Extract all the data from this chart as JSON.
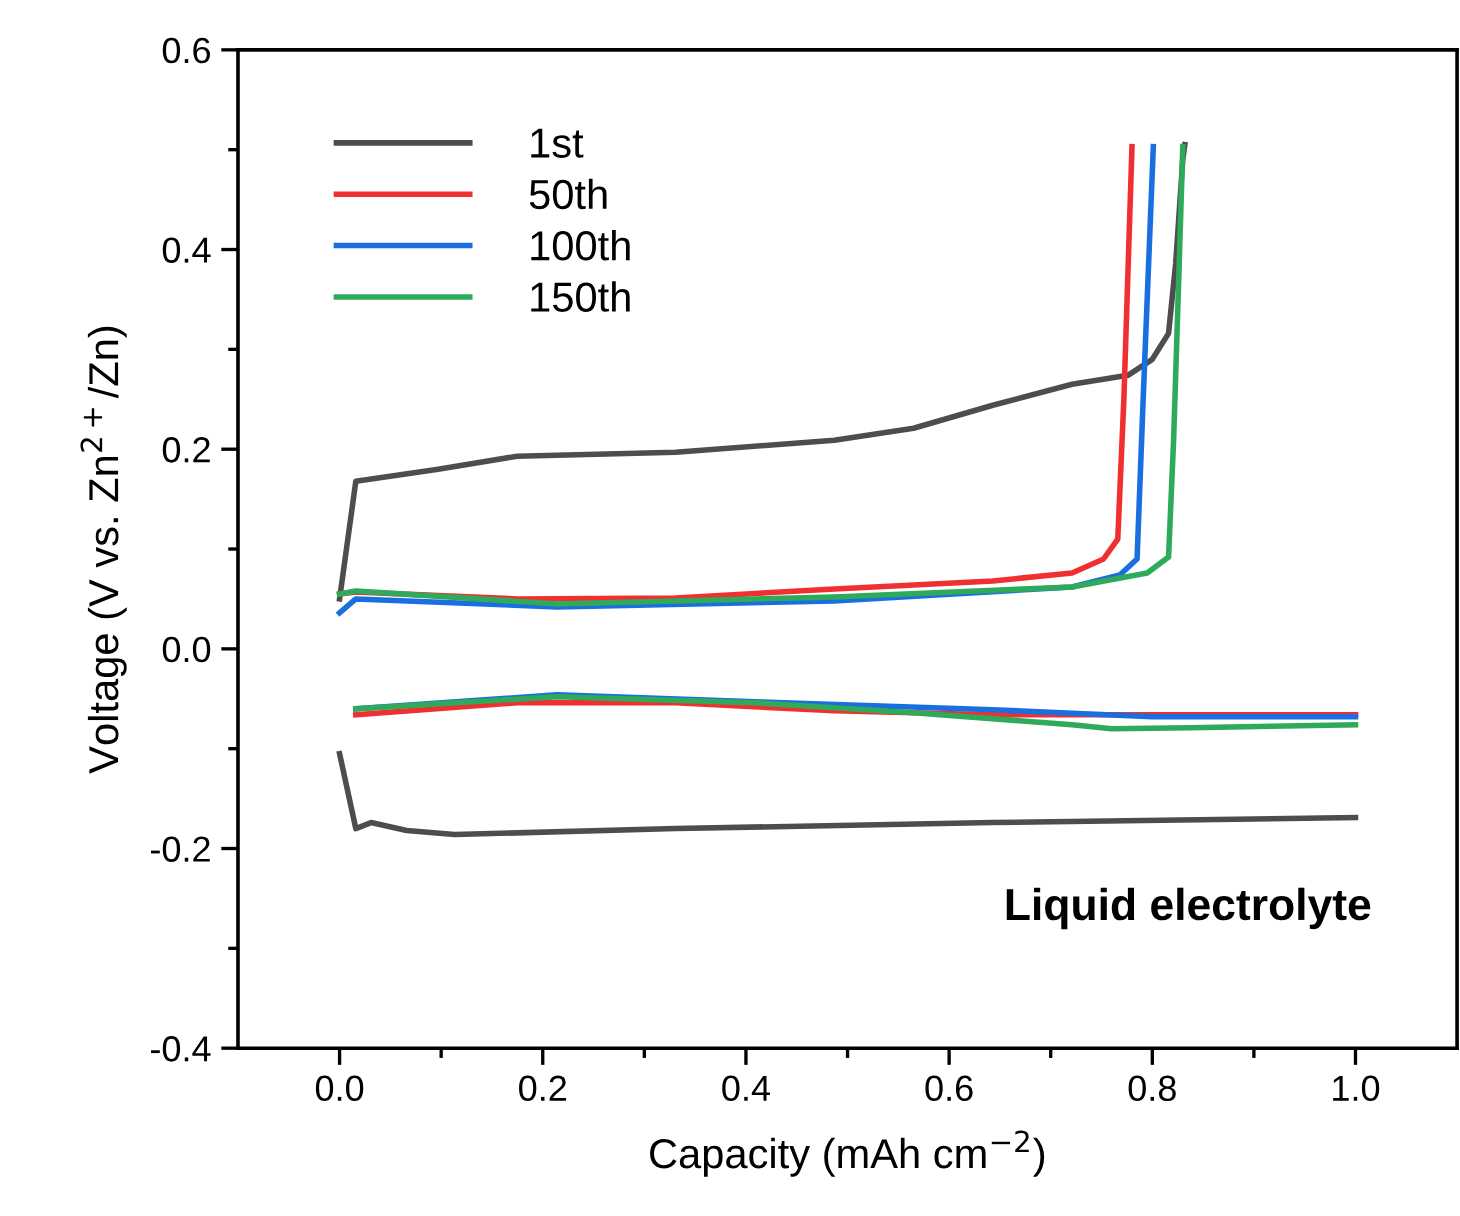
{
  "chart_data": {
    "type": "line",
    "xlabel": "Capacity (mAh cm$^{−2}$)",
    "ylabel": "Voltage (V vs. Zn$^{2+}$/Zn)",
    "xlim": [
      -0.1,
      1.1
    ],
    "ylim": [
      -0.4,
      0.6
    ],
    "xticks": [
      {
        "value": 0,
        "label": "0.0"
      },
      {
        "value": 0.1,
        "label": null
      },
      0.2,
      {
        "value": 0.3,
        "label": null
      },
      0.4,
      {
        "value": 0.5,
        "label": null
      },
      0.6,
      {
        "value": 0.7,
        "label": null
      },
      0.8,
      {
        "value": 0.9,
        "label": null
      },
      {
        "value": 1,
        "label": "1.0"
      }
    ],
    "yticks": [
      -0.4,
      {
        "value": -0.3,
        "label": null
      },
      -0.2,
      {
        "value": -0.1,
        "label": null
      },
      {
        "value": 0,
        "label": "0.0"
      },
      {
        "value": 0.1,
        "label": null
      },
      0.2,
      {
        "value": 0.3,
        "label": null
      },
      0.4,
      {
        "value": 0.5,
        "label": null
      },
      0.6
    ],
    "grid": false,
    "legend": "top left",
    "line_style": "solid",
    "marker": "none",
    "annotations": [
      "Liquid electrolyte"
    ],
    "series": [
      {
        "name": "1st",
        "color": "#4d4d4d",
        "x": [
          0,
          0.016,
          0.097,
          0.175,
          0.331,
          0.487,
          0.565,
          0.643,
          0.721,
          0.776,
          0.8,
          0.816,
          0.823,
          0.83,
          0.832
        ],
        "values": [
          0.05,
          0.168,
          0.18,
          0.193,
          0.197,
          0.209,
          0.221,
          0.244,
          0.265,
          0.274,
          0.29,
          0.316,
          0.386,
          0.49,
          0.505
        ]
      },
      {
        "name": "50th",
        "color": "#f03030",
        "x": [
          0,
          0.016,
          0.175,
          0.331,
          0.487,
          0.643,
          0.721,
          0.752,
          0.766,
          0.772,
          0.78
        ],
        "values": [
          0.055,
          0.057,
          0.05,
          0.051,
          0.06,
          0.068,
          0.076,
          0.09,
          0.11,
          0.25,
          0.503
        ]
      },
      {
        "name": "100th",
        "color": "#1a6fe0",
        "x": [
          0,
          0.016,
          0.214,
          0.487,
          0.721,
          0.768,
          0.785,
          0.791,
          0.801
        ],
        "values": [
          0.036,
          0.05,
          0.042,
          0.048,
          0.062,
          0.074,
          0.09,
          0.25,
          0.503
        ]
      },
      {
        "name": "150th",
        "color": "#2eaa5a",
        "x": [
          0,
          0.016,
          0.214,
          0.487,
          0.721,
          0.795,
          0.816,
          0.821,
          0.826,
          0.83
        ],
        "values": [
          0.055,
          0.058,
          0.045,
          0.052,
          0.062,
          0.076,
          0.092,
          0.21,
          0.37,
          0.503
        ]
      },
      {
        "color": "#4d4d4d",
        "x": [
          0,
          0.016,
          0.031,
          0.066,
          0.113,
          0.331,
          0.643,
          1.0
        ],
        "values": [
          -0.105,
          -0.18,
          -0.174,
          -0.182,
          -0.186,
          -0.18,
          -0.174,
          -0.169
        ]
      },
      {
        "color": "#f03030",
        "x": [
          0.016,
          0.175,
          0.331,
          0.487,
          0.643,
          1.0
        ],
        "values": [
          -0.066,
          -0.054,
          -0.054,
          -0.062,
          -0.066,
          -0.066
        ]
      },
      {
        "color": "#1a6fe0",
        "x": [
          0.016,
          0.214,
          0.409,
          0.643,
          0.8,
          1.0
        ],
        "values": [
          -0.06,
          -0.046,
          -0.053,
          -0.061,
          -0.068,
          -0.068
        ]
      },
      {
        "color": "#2eaa5a",
        "x": [
          0.016,
          0.214,
          0.409,
          0.565,
          0.721,
          0.76,
          0.838,
          1.0
        ],
        "values": [
          -0.06,
          -0.048,
          -0.054,
          -0.064,
          -0.076,
          -0.08,
          -0.079,
          -0.076
        ]
      }
    ]
  }
}
